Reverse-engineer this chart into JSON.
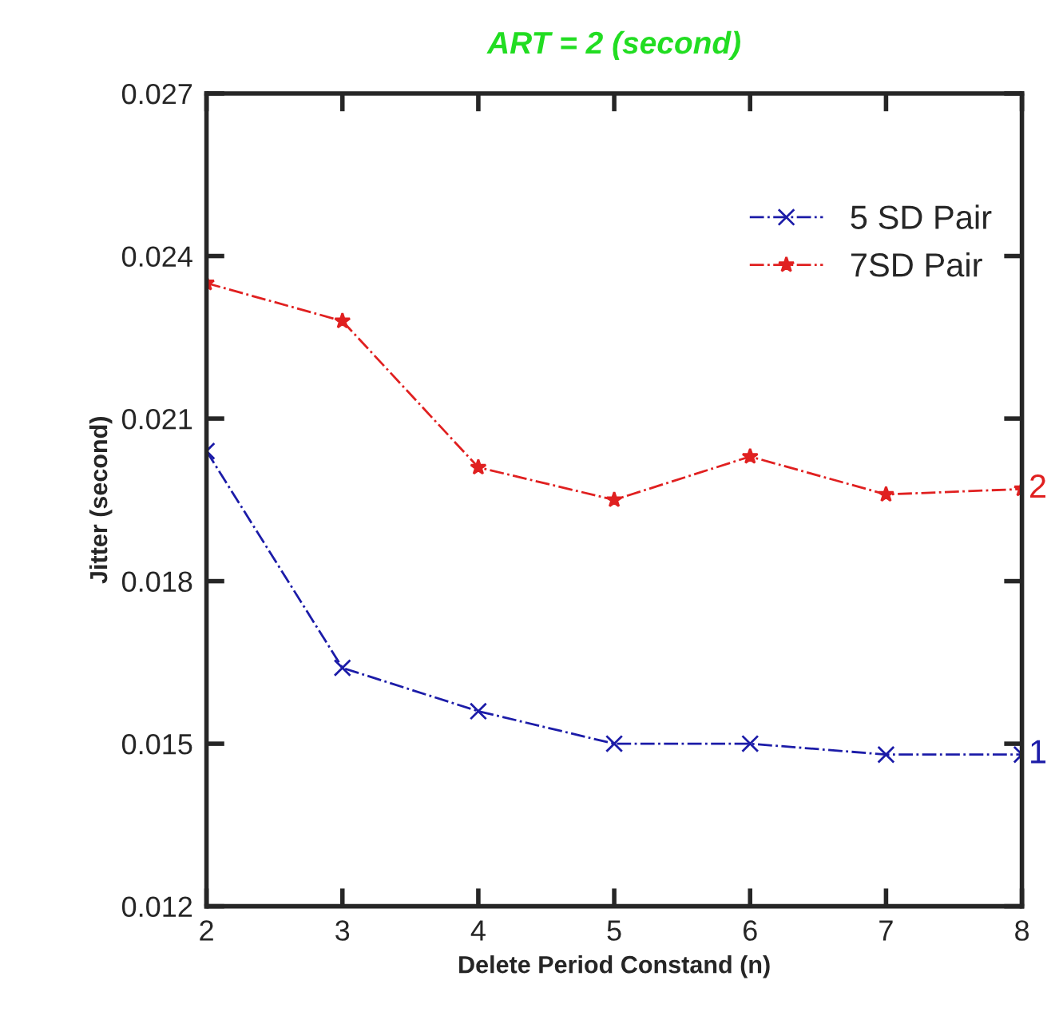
{
  "chart_data": {
    "type": "line",
    "title": "ART = 2 (second)",
    "xlabel": "Delete Period Constand (n)",
    "ylabel": "Jitter (second)",
    "x": [
      2,
      3,
      4,
      5,
      6,
      7,
      8
    ],
    "series": [
      {
        "name": "5 SD Pair",
        "color": "#1c1ca8",
        "marker": "cross",
        "values": [
          0.0204,
          0.0164,
          0.0156,
          0.015,
          0.015,
          0.0148,
          0.0148
        ]
      },
      {
        "name": "7SD Pair",
        "color": "#e02020",
        "marker": "star",
        "values": [
          0.0235,
          0.0228,
          0.0201,
          0.0195,
          0.0203,
          0.0196,
          0.0197
        ]
      }
    ],
    "annotations": [
      {
        "text": "1",
        "x": 8,
        "y": 0.0148
      },
      {
        "text": "2",
        "x": 8,
        "y": 0.0197
      }
    ],
    "xlim": [
      2,
      8
    ],
    "xticks": [
      2,
      3,
      4,
      5,
      6,
      7,
      8
    ],
    "ylim": [
      0.012,
      0.027
    ],
    "yticks": [
      0.012,
      0.015,
      0.018,
      0.021,
      0.024,
      0.027
    ],
    "line_style": "dashdot",
    "grid": false,
    "legend": "top right"
  }
}
